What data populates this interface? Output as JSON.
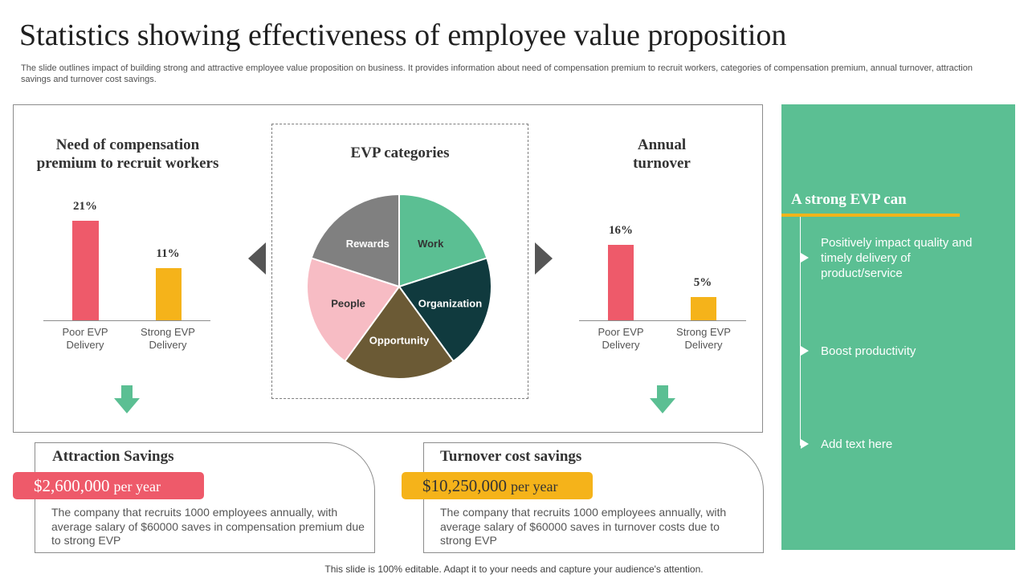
{
  "slide": {
    "title": "Statistics showing effectiveness of employee value proposition",
    "description": "The slide outlines impact of building strong and attractive employee value proposition on business. It provides information about need of compensation premium to recruit workers, categories of compensation premium, annual turnover, attraction savings and turnover cost savings.",
    "footer": "This slide is 100% editable. Adapt it to your needs and capture your audience's attention."
  },
  "compensation": {
    "title_line1": "Need of compensation",
    "title_line2": "premium to recruit workers",
    "bars": [
      {
        "label_line1": "Poor EVP",
        "label_line2": "Delivery",
        "value_label": "21%",
        "value": 21,
        "color": "#ee5a6a"
      },
      {
        "label_line1": "Strong EVP",
        "label_line2": "Delivery",
        "value_label": "11%",
        "value": 11,
        "color": "#f5b31a"
      }
    ]
  },
  "evp": {
    "title": "EVP categories",
    "slices": [
      {
        "label": "Work",
        "value": 20,
        "color": "#5bbf93",
        "label_color": "#333333"
      },
      {
        "label": "Organization",
        "value": 20,
        "color": "#103a3e",
        "label_color": "#ffffff"
      },
      {
        "label": "Opportunity",
        "value": 20,
        "color": "#6b5a35",
        "label_color": "#ffffff"
      },
      {
        "label": "People",
        "value": 20,
        "color": "#f7bcc4",
        "label_color": "#333333"
      },
      {
        "label": "Rewards",
        "value": 20,
        "color": "#808080",
        "label_color": "#ffffff"
      }
    ]
  },
  "turnover": {
    "title_line1": "Annual",
    "title_line2": "turnover",
    "bars": [
      {
        "label_line1": "Poor EVP",
        "label_line2": "Delivery",
        "value_label": "16%",
        "value": 16,
        "color": "#ee5a6a"
      },
      {
        "label_line1": "Strong EVP",
        "label_line2": "Delivery",
        "value_label": "5%",
        "value": 5,
        "color": "#f5b31a"
      }
    ]
  },
  "attraction": {
    "title": "Attraction Savings",
    "amount": "$2,600,000",
    "unit": "per year",
    "color": "#ee5a6a",
    "text": "The company that recruits 1000 employees annually, with average salary of $60000 saves in compensation premium due to strong EVP"
  },
  "turnover_savings": {
    "title": "Turnover cost savings",
    "amount": "$10,250,000",
    "unit": "per year",
    "color": "#f5b31a",
    "text": "The company that recruits 1000 employees annually, with average salary of $60000 saves in turnover costs due to strong EVP"
  },
  "strong_evp": {
    "title": "A strong EVP can",
    "items": [
      "Positively impact quality and timely delivery of product/service",
      "Boost productivity",
      "Add text here"
    ]
  }
}
